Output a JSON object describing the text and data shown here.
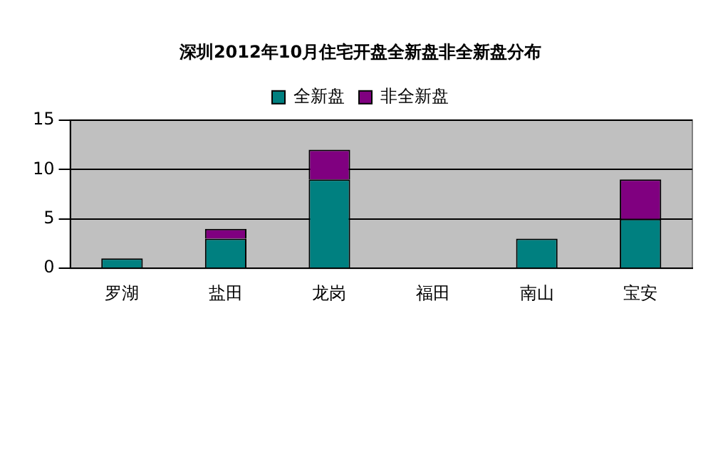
{
  "chart_data": {
    "type": "bar",
    "title": "深圳2012年10月住宅开盘全新盘非全新盘分布",
    "categories": [
      "罗湖",
      "盐田",
      "龙岗",
      "福田",
      "南山",
      "宝安"
    ],
    "stacked": true,
    "legend": "top",
    "grid": "y",
    "ylim": [
      0,
      15
    ],
    "yticks": [
      0,
      5,
      10,
      15
    ],
    "series": [
      {
        "name": "全新盘",
        "color": "#008080",
        "values": [
          1,
          3,
          9,
          0,
          3,
          5
        ]
      },
      {
        "name": "非全新盘",
        "color": "#800080",
        "values": [
          0,
          1,
          3,
          0,
          0,
          4
        ]
      }
    ]
  }
}
